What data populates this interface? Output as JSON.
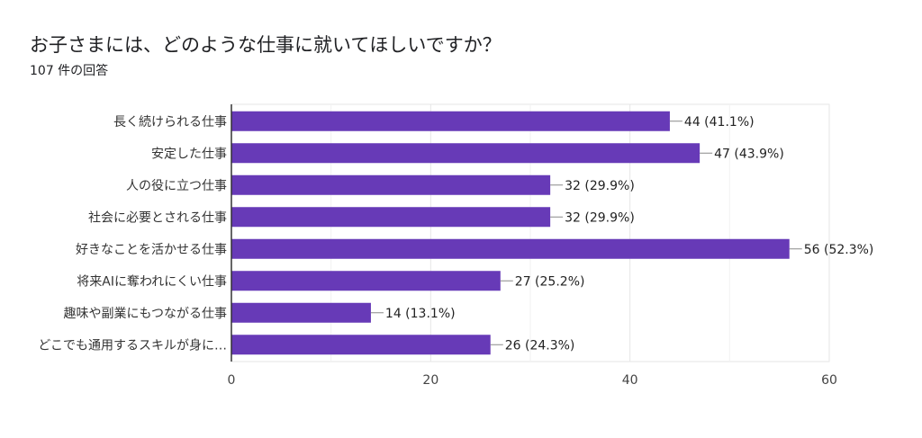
{
  "title": "お子さまには、どのような仕事に就いてほしいですか？",
  "subtitle": "107 件の回答",
  "colors": {
    "bar": "#673ab7",
    "grid": "#e6e6e6",
    "axis": "#333333"
  },
  "chart_data": {
    "type": "bar",
    "orientation": "horizontal",
    "categories": [
      "長く続けられる仕事",
      "安定した仕事",
      "人の役に立つ仕事",
      "社会に必要とされる仕事",
      "好きなことを活かせる仕事",
      "将来AIに奪われにくい仕事",
      "趣味や副業にもつながる仕事",
      "どこでも通用するスキルが身に…"
    ],
    "values": [
      44,
      47,
      32,
      32,
      56,
      27,
      14,
      26
    ],
    "data_labels": [
      "44 (41.1%)",
      "47 (43.9%)",
      "32 (29.9%)",
      "32 (29.9%)",
      "56 (52.3%)",
      "27 (25.2%)",
      "14 (13.1%)",
      "26 (24.3%)"
    ],
    "xlim": [
      0,
      60
    ],
    "xticks": [
      0,
      20,
      40,
      60
    ],
    "grid": true
  }
}
